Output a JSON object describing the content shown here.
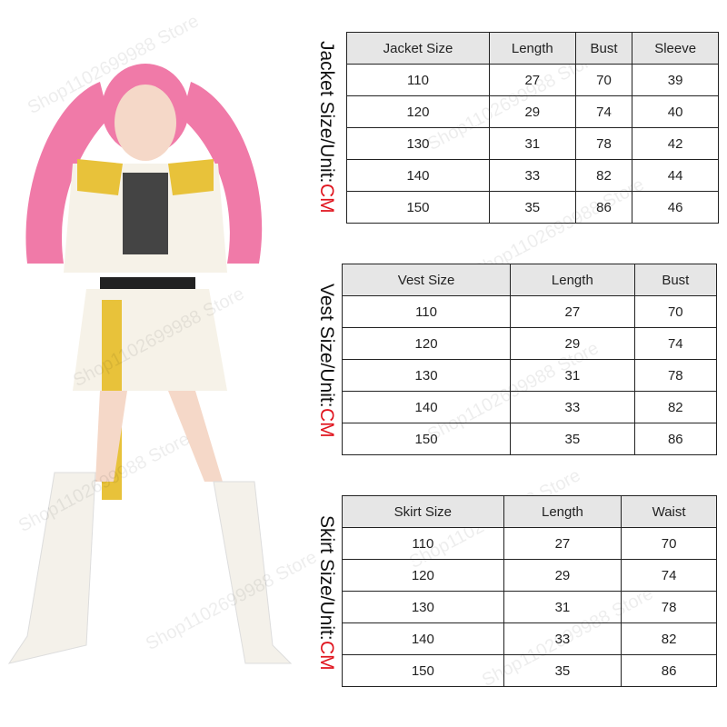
{
  "watermark": "Shop1102699988 Store",
  "jacket": {
    "label": "Jacket Size/Unit:",
    "unit": "CM",
    "headers": [
      "Jacket Size",
      "Length",
      "Bust",
      "Sleeve"
    ],
    "rows": [
      [
        "110",
        "27",
        "70",
        "39"
      ],
      [
        "120",
        "29",
        "74",
        "40"
      ],
      [
        "130",
        "31",
        "78",
        "42"
      ],
      [
        "140",
        "33",
        "82",
        "44"
      ],
      [
        "150",
        "35",
        "86",
        "46"
      ]
    ]
  },
  "vest": {
    "label": "Vest Size/Unit:",
    "unit": "CM",
    "headers": [
      "Vest Size",
      "Length",
      "Bust"
    ],
    "rows": [
      [
        "110",
        "27",
        "70"
      ],
      [
        "120",
        "29",
        "74"
      ],
      [
        "130",
        "31",
        "78"
      ],
      [
        "140",
        "33",
        "82"
      ],
      [
        "150",
        "35",
        "86"
      ]
    ]
  },
  "skirt": {
    "label": "Skirt Size/Unit:",
    "unit": "CM",
    "headers": [
      "Skirt Size",
      "Length",
      "Waist"
    ],
    "rows": [
      [
        "110",
        "27",
        "70"
      ],
      [
        "120",
        "29",
        "74"
      ],
      [
        "130",
        "31",
        "78"
      ],
      [
        "140",
        "33",
        "82"
      ],
      [
        "150",
        "35",
        "86"
      ]
    ]
  },
  "colors": {
    "unit": "#e0141e",
    "header_bg": "#e6e6e6",
    "hair": "#f07aa8",
    "gold": "#e8c23a"
  }
}
